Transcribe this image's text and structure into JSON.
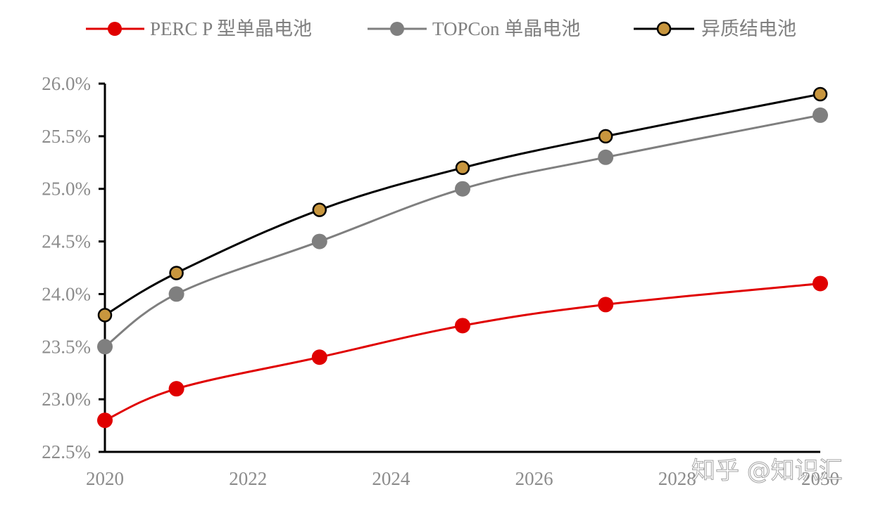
{
  "chart_data": {
    "type": "line",
    "title": "",
    "xlabel": "",
    "ylabel": "",
    "x": [
      2020,
      2021,
      2023,
      2025,
      2027,
      2030
    ],
    "x_ticks": [
      "2020",
      "2022",
      "2024",
      "2026",
      "2028",
      "2030"
    ],
    "x_range": [
      2020,
      2030
    ],
    "y_ticks": [
      "22.5%",
      "23.0%",
      "23.5%",
      "24.0%",
      "24.5%",
      "25.0%",
      "25.5%",
      "26.0%"
    ],
    "ylim": [
      22.5,
      26.0
    ],
    "y_unit": "%",
    "grid": false,
    "legend_position": "top",
    "series": [
      {
        "name": "PERC P 型单晶电池",
        "color": "#e00000",
        "marker_fill": "#e00000",
        "marker_stroke": "#e00000",
        "values": [
          22.8,
          23.1,
          23.4,
          23.7,
          23.9,
          24.1
        ]
      },
      {
        "name": "TOPCon 单晶电池",
        "color": "#7f7f7f",
        "marker_fill": "#7f7f7f",
        "marker_stroke": "#7f7f7f",
        "values": [
          23.5,
          24.0,
          24.5,
          25.0,
          25.3,
          25.7
        ]
      },
      {
        "name": "异质结电池",
        "color": "#000000",
        "marker_fill": "#c8963e",
        "marker_stroke": "#000000",
        "values": [
          23.8,
          24.2,
          24.8,
          25.2,
          25.5,
          25.9
        ]
      }
    ]
  },
  "legend": {
    "items": [
      {
        "label": "PERC P 型单晶电池"
      },
      {
        "label": "TOPCon 单晶电池"
      },
      {
        "label": "异质结电池"
      }
    ]
  },
  "watermark": {
    "text": "知乎 @知识汇"
  }
}
